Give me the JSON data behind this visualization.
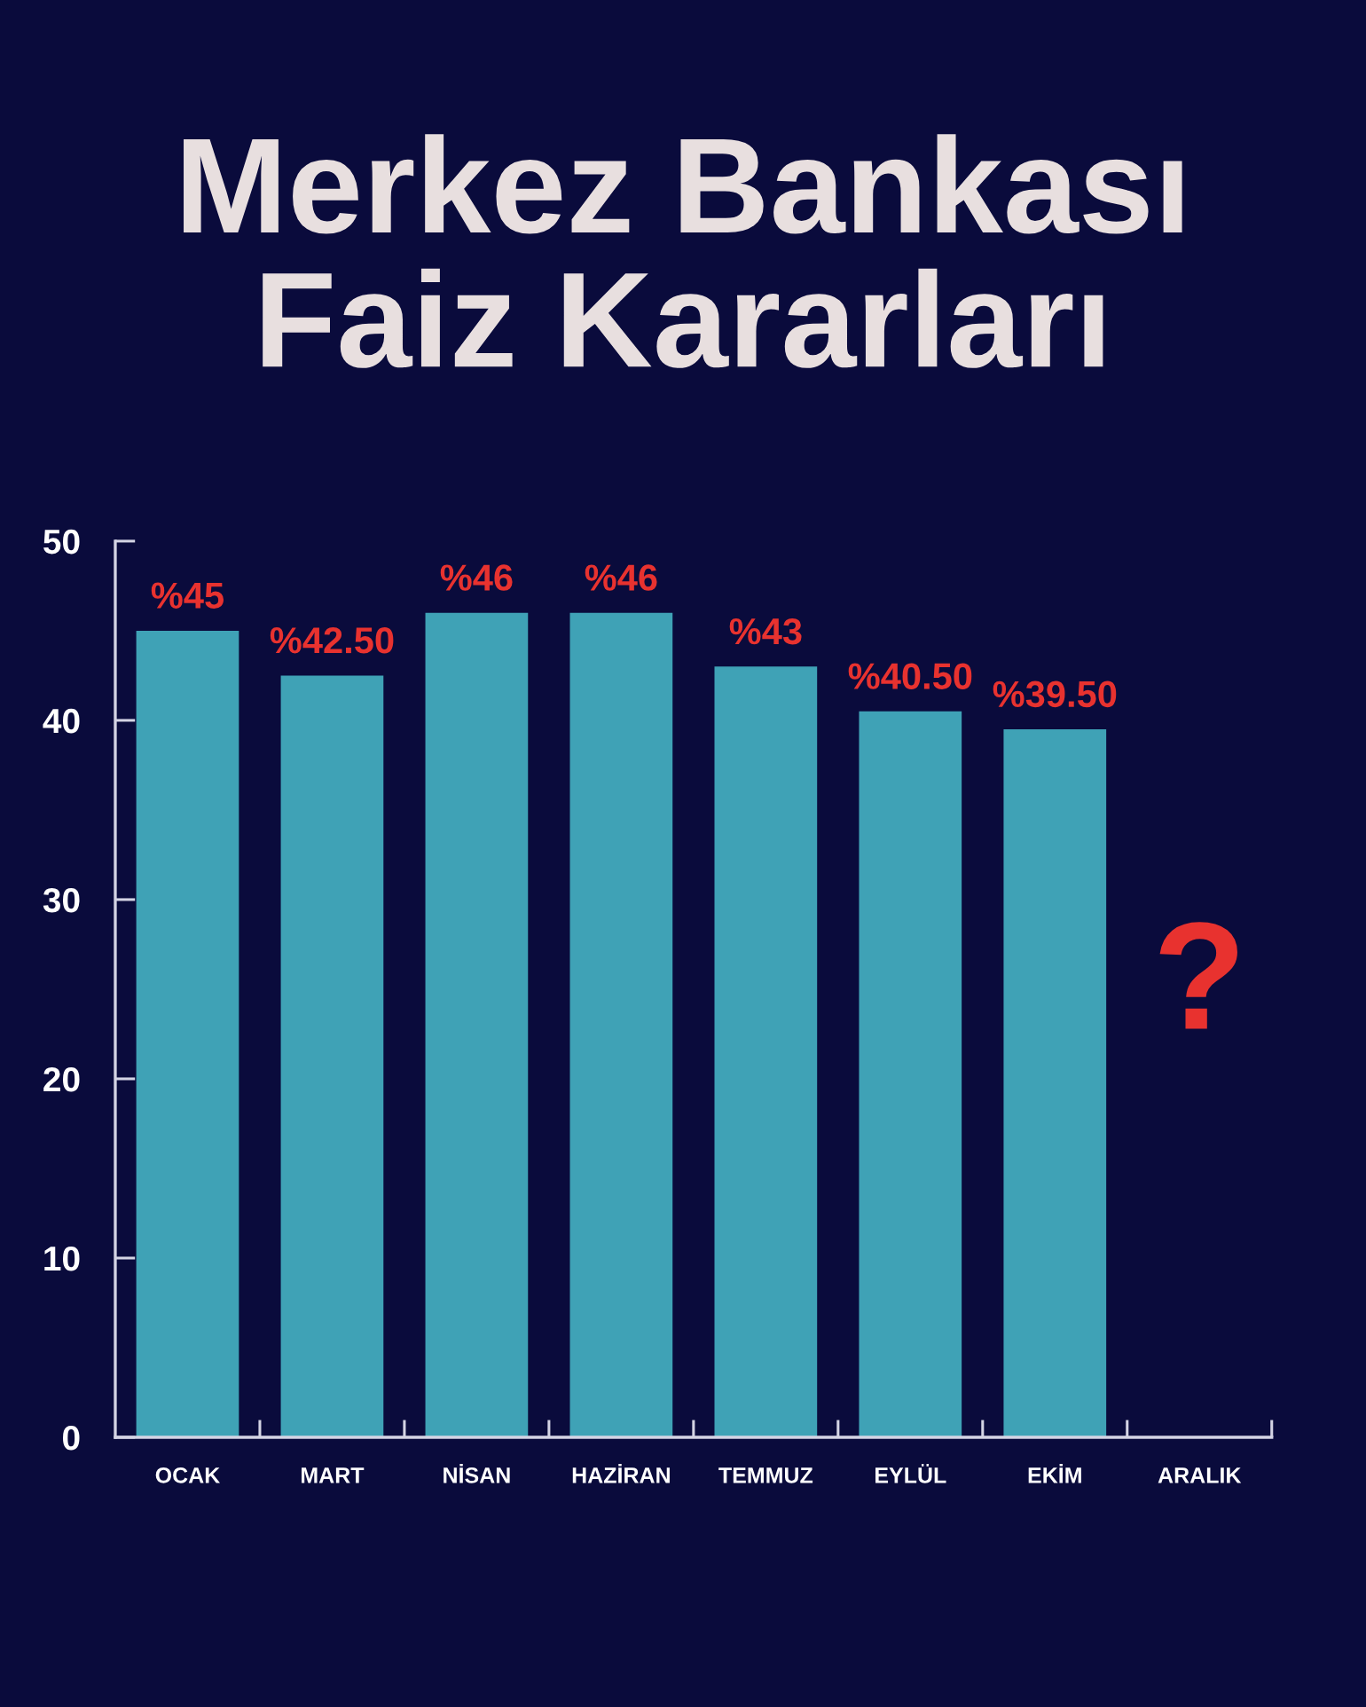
{
  "chart_data": {
    "type": "bar",
    "title": "Merkez Bankası\nFaiz Kararları",
    "categories": [
      "OCAK",
      "MART",
      "NİSAN",
      "HAZİRAN",
      "TEMMUZ",
      "EYLÜL",
      "EKİM",
      "ARALIK"
    ],
    "series": [
      {
        "color": "#3fa2b6",
        "values": [
          45,
          42.5,
          46,
          46,
          43,
          40.5,
          39.5,
          null
        ],
        "value_labels": [
          "%45",
          "%42.50",
          "%46",
          "%46",
          "%43",
          "%40.50",
          "%39.50",
          null
        ]
      }
    ],
    "ylim": [
      0,
      50
    ],
    "yticks": [
      0,
      10,
      20,
      30,
      40,
      50
    ],
    "grid": false,
    "legend": false,
    "annotations": [
      "?"
    ]
  }
}
